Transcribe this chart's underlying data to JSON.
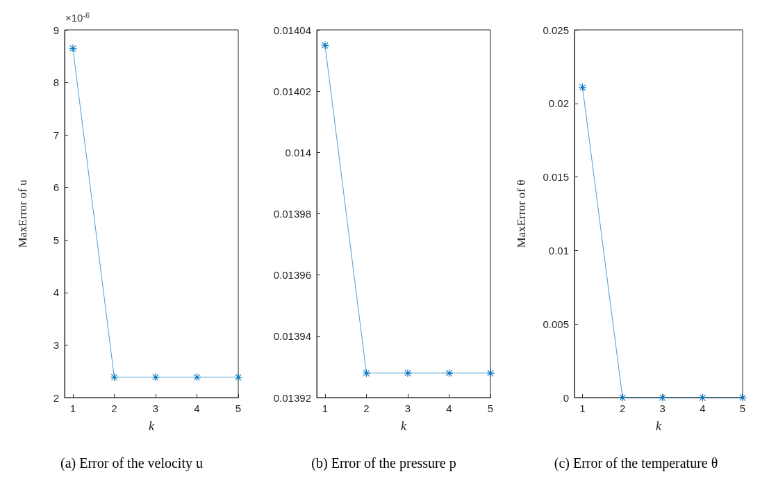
{
  "chart_data": [
    {
      "type": "line",
      "title": "(a) Error of the velocity u",
      "xlabel": "k",
      "ylabel": "MaxError of u",
      "annotations": [
        "×10$^{-6}$"
      ],
      "x": [
        1,
        2,
        3,
        4,
        5
      ],
      "series": [
        {
          "color": "#0072bd",
          "values": [
            8.65,
            2.39,
            2.39,
            2.39,
            2.39
          ]
        }
      ],
      "xlim": [
        0.8,
        5
      ],
      "xticks": [
        1,
        2,
        3,
        4,
        5
      ],
      "ylim": [
        2,
        9
      ],
      "yticks": [
        2,
        3,
        4,
        5,
        6,
        7,
        8,
        9
      ],
      "grid": false,
      "marker": "star",
      "line_style": "solid"
    },
    {
      "type": "line",
      "title": "(b) Error of the pressure p",
      "xlabel": "k",
      "x": [
        1,
        2,
        3,
        4,
        5
      ],
      "series": [
        {
          "color": "#0072bd",
          "values": [
            0.014035,
            0.013928,
            0.013928,
            0.013928,
            0.013928
          ]
        }
      ],
      "xlim": [
        0.8,
        5
      ],
      "xticks": [
        1,
        2,
        3,
        4,
        5
      ],
      "ylim": [
        0.01392,
        0.01404
      ],
      "yticks": [
        0.01392,
        0.01394,
        0.01396,
        0.01398,
        0.014,
        0.01402,
        0.01404
      ],
      "grid": false,
      "marker": "star",
      "line_style": "solid"
    },
    {
      "type": "line",
      "title": "(c) Error of the temperature θ",
      "xlabel": "k",
      "ylabel": "MaxError of θ",
      "x": [
        1,
        2,
        3,
        4,
        5
      ],
      "series": [
        {
          "color": "#0072bd",
          "values": [
            0.0211,
            0,
            0,
            0,
            0
          ]
        }
      ],
      "xlim": [
        0.8,
        5
      ],
      "xticks": [
        1,
        2,
        3,
        4,
        5
      ],
      "ylim": [
        0,
        0.025
      ],
      "yticks": [
        0,
        0.005,
        0.01,
        0.015,
        0.02,
        0.025
      ],
      "grid": false,
      "marker": "star",
      "line_style": "solid"
    }
  ]
}
